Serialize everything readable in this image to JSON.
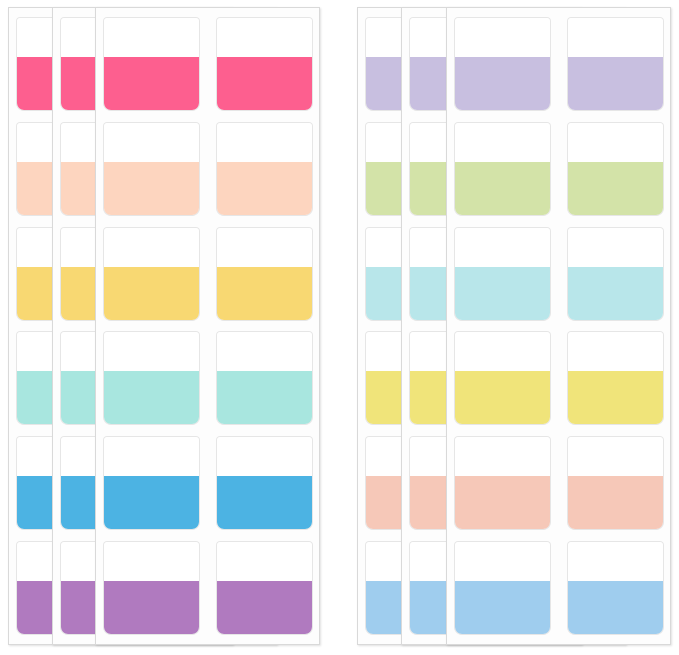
{
  "groups": [
    {
      "colors": [
        "#fd5f8f",
        "#fdd5bf",
        "#f8d872",
        "#a8e6df",
        "#4cb3e3",
        "#b07abf"
      ]
    },
    {
      "colors": [
        "#c8bfe0",
        "#d3e3a8",
        "#b8e6ea",
        "#f0e47a",
        "#f6c8b8",
        "#9fcdee"
      ]
    }
  ]
}
